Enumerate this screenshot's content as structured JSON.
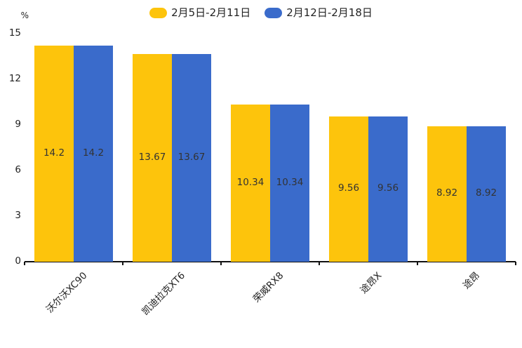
{
  "chart_data": {
    "type": "bar",
    "title": "",
    "unit_label": "%",
    "categories": [
      "沃尔沃XC90",
      "凯迪拉克XT6",
      "荣威RX8",
      "途昂X",
      "途昂"
    ],
    "series": [
      {
        "name": "2月5日-2月11日",
        "color": "#FDC40C",
        "values": [
          14.2,
          13.67,
          10.34,
          9.56,
          8.92
        ]
      },
      {
        "name": "2月12日-2月18日",
        "color": "#3A6BCB",
        "values": [
          14.2,
          13.67,
          10.34,
          9.56,
          8.92
        ]
      }
    ],
    "ylim": [
      0,
      15
    ],
    "yticks": [
      0,
      3,
      6,
      9,
      12,
      15
    ],
    "legend_position": "top",
    "grid": false,
    "value_labels": "inside-center",
    "xlabel": "",
    "ylabel": "%"
  },
  "colors": {
    "axis": "#111111",
    "tick_text": "#222222",
    "value_label_text": "#333333",
    "background": "#ffffff"
  }
}
